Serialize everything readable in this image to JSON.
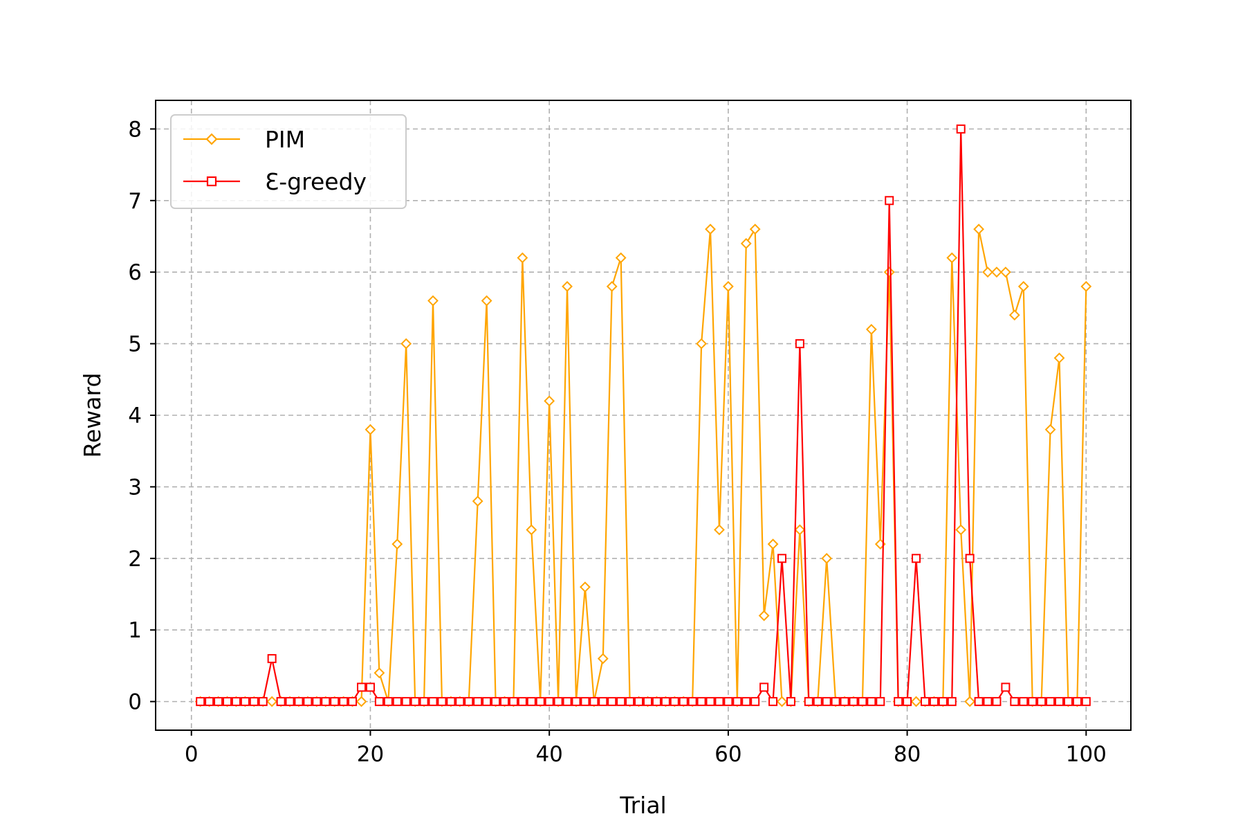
{
  "chart_data": {
    "type": "line",
    "title": "",
    "xlabel": "Trial",
    "ylabel": "Reward",
    "xlim": [
      -4,
      105
    ],
    "ylim": [
      -0.4,
      8.4
    ],
    "xticks": [
      0,
      20,
      40,
      60,
      80,
      100
    ],
    "yticks": [
      0,
      1,
      2,
      3,
      4,
      5,
      6,
      7,
      8
    ],
    "grid": true,
    "legend_position": "top-left",
    "series": [
      {
        "name": "PIM",
        "color": "#ffa500",
        "marker": "diamond",
        "x": [
          1,
          2,
          3,
          4,
          5,
          6,
          7,
          8,
          9,
          10,
          11,
          12,
          13,
          14,
          15,
          16,
          17,
          18,
          19,
          20,
          21,
          22,
          23,
          24,
          25,
          26,
          27,
          28,
          29,
          30,
          31,
          32,
          33,
          34,
          35,
          36,
          37,
          38,
          39,
          40,
          41,
          42,
          43,
          44,
          45,
          46,
          47,
          48,
          49,
          50,
          51,
          52,
          53,
          54,
          55,
          56,
          57,
          58,
          59,
          60,
          61,
          62,
          63,
          64,
          65,
          66,
          67,
          68,
          69,
          70,
          71,
          72,
          73,
          74,
          75,
          76,
          77,
          78,
          79,
          80,
          81,
          82,
          83,
          84,
          85,
          86,
          87,
          88,
          89,
          90,
          91,
          92,
          93,
          94,
          95,
          96,
          97,
          98,
          99,
          100
        ],
        "y": [
          0,
          0,
          0,
          0,
          0,
          0,
          0,
          0,
          0,
          0,
          0,
          0,
          0,
          0,
          0,
          0,
          0,
          0,
          0,
          3.8,
          0.4,
          0,
          2.2,
          5.0,
          0,
          0,
          5.6,
          0,
          0,
          0,
          0,
          2.8,
          5.6,
          0,
          0,
          0,
          6.2,
          2.4,
          0,
          4.2,
          0,
          5.8,
          0,
          1.6,
          0,
          0.6,
          5.8,
          6.2,
          0,
          0,
          0,
          0,
          0,
          0,
          0,
          0,
          5.0,
          6.6,
          2.4,
          5.8,
          0,
          6.4,
          6.6,
          1.2,
          2.2,
          0,
          0,
          2.4,
          0,
          0,
          2.0,
          0,
          0,
          0,
          0,
          5.2,
          2.2,
          6.0,
          0,
          0,
          0,
          0,
          0,
          0,
          6.2,
          2.4,
          0,
          6.6,
          6.0,
          6.0,
          6.0,
          5.4,
          5.8,
          0,
          0,
          3.8,
          4.8,
          0,
          0,
          5.8
        ]
      },
      {
        "name": "Ɛ-greedy",
        "color": "#ff0000",
        "marker": "square",
        "x": [
          1,
          2,
          3,
          4,
          5,
          6,
          7,
          8,
          9,
          10,
          11,
          12,
          13,
          14,
          15,
          16,
          17,
          18,
          19,
          20,
          21,
          22,
          23,
          24,
          25,
          26,
          27,
          28,
          29,
          30,
          31,
          32,
          33,
          34,
          35,
          36,
          37,
          38,
          39,
          40,
          41,
          42,
          43,
          44,
          45,
          46,
          47,
          48,
          49,
          50,
          51,
          52,
          53,
          54,
          55,
          56,
          57,
          58,
          59,
          60,
          61,
          62,
          63,
          64,
          65,
          66,
          67,
          68,
          69,
          70,
          71,
          72,
          73,
          74,
          75,
          76,
          77,
          78,
          79,
          80,
          81,
          82,
          83,
          84,
          85,
          86,
          87,
          88,
          89,
          90,
          91,
          92,
          93,
          94,
          95,
          96,
          97,
          98,
          99,
          100
        ],
        "y": [
          0,
          0,
          0,
          0,
          0,
          0,
          0,
          0,
          0.6,
          0,
          0,
          0,
          0,
          0,
          0,
          0,
          0,
          0,
          0.2,
          0.2,
          0,
          0,
          0,
          0,
          0,
          0,
          0,
          0,
          0,
          0,
          0,
          0,
          0,
          0,
          0,
          0,
          0,
          0,
          0,
          0,
          0,
          0,
          0,
          0,
          0,
          0,
          0,
          0,
          0,
          0,
          0,
          0,
          0,
          0,
          0,
          0,
          0,
          0,
          0,
          0,
          0,
          0,
          0,
          0.2,
          0,
          2.0,
          0,
          5.0,
          0,
          0,
          0,
          0,
          0,
          0,
          0,
          0,
          0,
          7.0,
          0,
          0,
          2.0,
          0,
          0,
          0,
          0,
          8.0,
          2.0,
          0,
          0,
          0,
          0.2,
          0,
          0,
          0,
          0,
          0,
          0,
          0,
          0,
          0
        ]
      }
    ]
  }
}
